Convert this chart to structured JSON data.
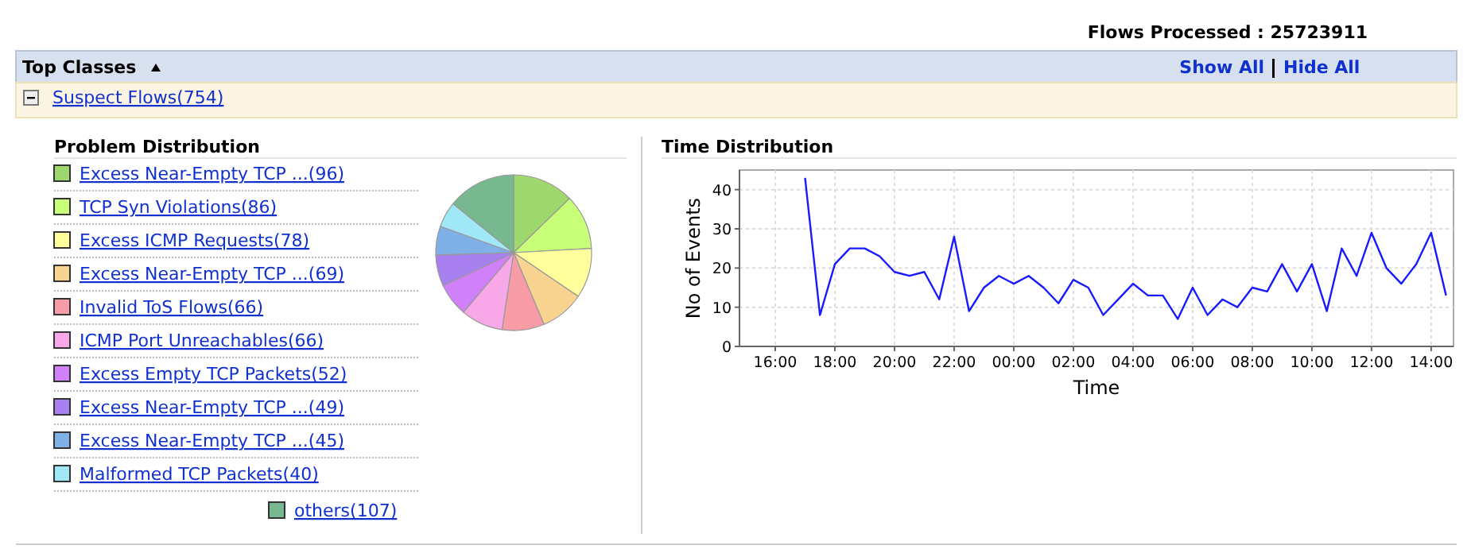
{
  "chart_data": [
    {
      "type": "other",
      "title": "Top Classes",
      "annotations": [
        "Flows Processed : 25723911",
        "Show All",
        "Hide All",
        "Suspect Flows(754)"
      ]
    },
    {
      "type": "pie",
      "title": "Problem Distribution",
      "legend": "left",
      "categories": [
        "Excess Near-Empty TCP ...(96)",
        "TCP Syn Violations(86)",
        "Excess ICMP Requests(78)",
        "Excess Near-Empty TCP ...(69)",
        "Invalid ToS Flows(66)",
        "ICMP Port Unreachables(66)",
        "Excess Empty TCP Packets(52)",
        "Excess Near-Empty TCP ...(49)",
        "Excess Near-Empty TCP ...(45)",
        "Malformed TCP Packets(40)",
        "others(107)"
      ],
      "values": [
        96,
        86,
        78,
        69,
        66,
        66,
        52,
        49,
        45,
        40,
        107
      ],
      "colors": [
        "#a0d870",
        "#c8ff78",
        "#ffff9c",
        "#f8d490",
        "#f89ca8",
        "#f8a8e8",
        "#d080f8",
        "#a880f0",
        "#80b0e8",
        "#a0e8f8",
        "#78b890"
      ]
    },
    {
      "type": "line",
      "title": "Time Distribution",
      "xlabel": "Time",
      "ylabel": "No of Events",
      "grid": true,
      "xlim": [
        "2000-01-01T14:48",
        "2000-01-02T14:45"
      ],
      "ylim": [
        0,
        45
      ],
      "xticks": [
        {
          "value": "2000-01-01T16:00",
          "label": "16:00"
        },
        {
          "value": "2000-01-01T18:00",
          "label": "18:00"
        },
        {
          "value": "2000-01-01T20:00",
          "label": "20:00"
        },
        {
          "value": "2000-01-01T22:00",
          "label": "22:00"
        },
        {
          "value": "2000-01-02T00:00",
          "label": "00:00"
        },
        {
          "value": "2000-01-02T02:00",
          "label": "02:00"
        },
        {
          "value": "2000-01-02T04:00",
          "label": "04:00"
        },
        {
          "value": "2000-01-02T06:00",
          "label": "06:00"
        },
        {
          "value": "2000-01-02T08:00",
          "label": "08:00"
        },
        {
          "value": "2000-01-02T10:00",
          "label": "10:00"
        },
        {
          "value": "2000-01-02T12:00",
          "label": "12:00"
        },
        {
          "value": "2000-01-02T14:00",
          "label": "14:00"
        }
      ],
      "yticks": [
        0,
        10,
        20,
        30,
        40
      ],
      "x": [
        "2000-01-01T17:00",
        "2000-01-01T17:30",
        "2000-01-01T18:00",
        "2000-01-01T18:30",
        "2000-01-01T19:00",
        "2000-01-01T19:30",
        "2000-01-01T20:00",
        "2000-01-01T20:30",
        "2000-01-01T21:00",
        "2000-01-01T21:30",
        "2000-01-01T22:00",
        "2000-01-01T22:30",
        "2000-01-01T23:00",
        "2000-01-01T23:30",
        "2000-01-02T00:00",
        "2000-01-02T00:30",
        "2000-01-02T01:00",
        "2000-01-02T01:30",
        "2000-01-02T02:00",
        "2000-01-02T02:30",
        "2000-01-02T03:00",
        "2000-01-02T03:30",
        "2000-01-02T04:00",
        "2000-01-02T04:30",
        "2000-01-02T05:00",
        "2000-01-02T05:30",
        "2000-01-02T06:00",
        "2000-01-02T06:30",
        "2000-01-02T07:00",
        "2000-01-02T07:30",
        "2000-01-02T08:00",
        "2000-01-02T08:30",
        "2000-01-02T09:00",
        "2000-01-02T09:30",
        "2000-01-02T10:00",
        "2000-01-02T10:30",
        "2000-01-02T11:00",
        "2000-01-02T11:30",
        "2000-01-02T12:00",
        "2000-01-02T12:30",
        "2000-01-02T13:00",
        "2000-01-02T13:30",
        "2000-01-02T14:00",
        "2000-01-02T14:30"
      ],
      "series": [
        {
          "color": "#1a1aff",
          "values": [
            43,
            8,
            21,
            25,
            25,
            23,
            19,
            18,
            19,
            12,
            28,
            9,
            15,
            18,
            16,
            18,
            15,
            11,
            17,
            15,
            8,
            12,
            16,
            13,
            13,
            7,
            15,
            8,
            12,
            10,
            15,
            14,
            21,
            14,
            21,
            9,
            25,
            18,
            29,
            20,
            16,
            21,
            29,
            13
          ]
        }
      ]
    }
  ]
}
